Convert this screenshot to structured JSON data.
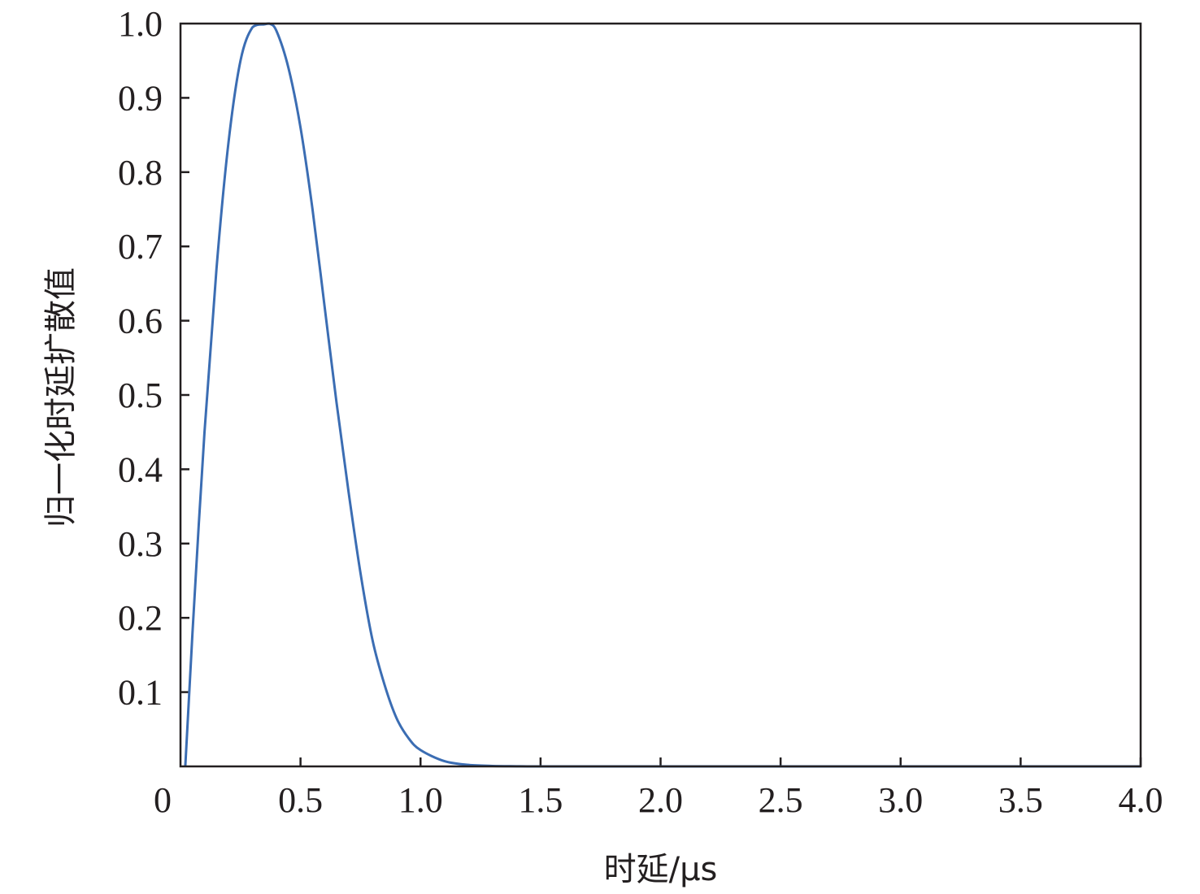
{
  "chart_data": {
    "type": "line",
    "title": "",
    "xlabel": "时延/μs",
    "ylabel": "归一化时延扩散值",
    "xlim": [
      0,
      4.0
    ],
    "ylim": [
      0,
      1.0
    ],
    "grid": false,
    "legend": "none",
    "line_color": "#3b6db3",
    "x_ticks": [
      {
        "value": 0,
        "label": "0"
      },
      {
        "value": 0.5,
        "label": "0.5"
      },
      {
        "value": 1.0,
        "label": "1.0"
      },
      {
        "value": 1.5,
        "label": "1.5"
      },
      {
        "value": 2.0,
        "label": "2.0"
      },
      {
        "value": 2.5,
        "label": "2.5"
      },
      {
        "value": 3.0,
        "label": "3.0"
      },
      {
        "value": 3.5,
        "label": "3.5"
      },
      {
        "value": 4.0,
        "label": "4.0"
      }
    ],
    "y_ticks": [
      {
        "value": 0.1,
        "label": "0.1"
      },
      {
        "value": 0.2,
        "label": "0.2"
      },
      {
        "value": 0.3,
        "label": "0.3"
      },
      {
        "value": 0.4,
        "label": "0.4"
      },
      {
        "value": 0.5,
        "label": "0.5"
      },
      {
        "value": 0.6,
        "label": "0.6"
      },
      {
        "value": 0.7,
        "label": "0.7"
      },
      {
        "value": 0.8,
        "label": "0.8"
      },
      {
        "value": 0.9,
        "label": "0.9"
      },
      {
        "value": 1.0,
        "label": "1.0"
      }
    ],
    "series": [
      {
        "x": [
          0.02,
          0.05,
          0.1,
          0.15,
          0.2,
          0.25,
          0.3,
          0.35,
          0.37,
          0.4,
          0.45,
          0.5,
          0.55,
          0.6,
          0.65,
          0.7,
          0.75,
          0.8,
          0.85,
          0.9,
          0.95,
          1.0,
          1.1,
          1.2,
          1.3,
          1.4,
          1.5,
          2.0,
          2.5,
          3.0,
          3.5,
          4.0
        ],
        "y": [
          0.0,
          0.18,
          0.45,
          0.67,
          0.84,
          0.95,
          0.995,
          0.999,
          1.0,
          0.99,
          0.94,
          0.86,
          0.75,
          0.62,
          0.49,
          0.37,
          0.26,
          0.17,
          0.11,
          0.065,
          0.038,
          0.022,
          0.007,
          0.002,
          0.0006,
          0.0002,
          0.0,
          0.0,
          0.0,
          0.0,
          0.0,
          0.0
        ]
      }
    ]
  }
}
